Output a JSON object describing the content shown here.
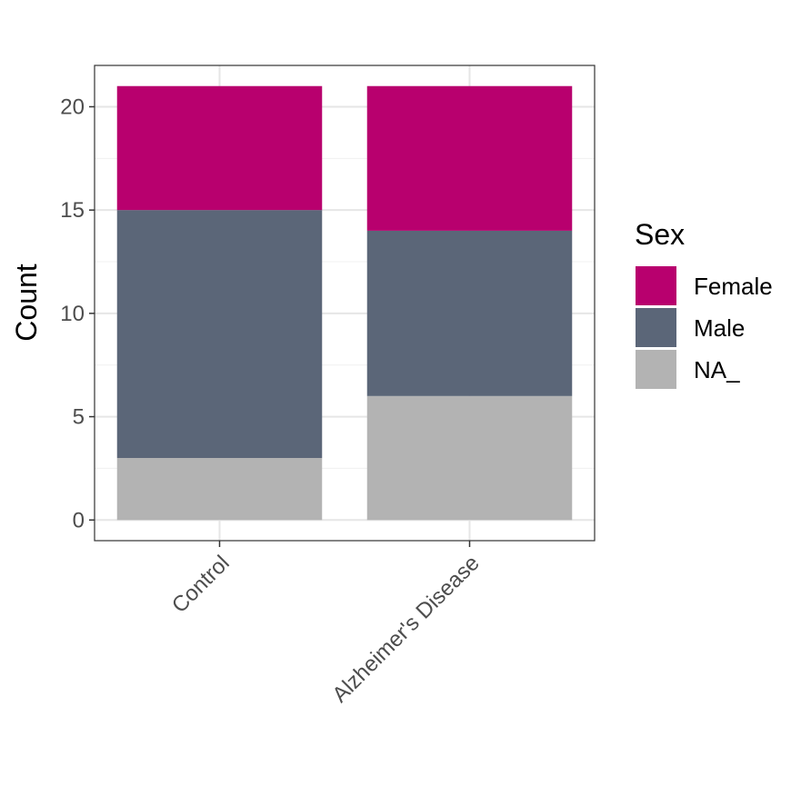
{
  "chart_data": {
    "type": "bar",
    "stacked": true,
    "categories": [
      "Control",
      "Alzheimer's Disease"
    ],
    "series": [
      {
        "name": "NA_",
        "values": [
          3,
          6
        ],
        "color": "#b3b3b3"
      },
      {
        "name": "Male",
        "values": [
          12,
          8
        ],
        "color": "#5b6678"
      },
      {
        "name": "Female",
        "values": [
          6,
          7
        ],
        "color": "#b8006e"
      }
    ],
    "legend_order": [
      "Female",
      "Male",
      "NA_"
    ],
    "title": "",
    "xlabel": "",
    "ylabel": "Count",
    "ylim": [
      -1,
      22
    ],
    "yticks": [
      0,
      5,
      10,
      15,
      20
    ],
    "grid": true,
    "legend": {
      "title": "Sex",
      "position": "right"
    }
  }
}
